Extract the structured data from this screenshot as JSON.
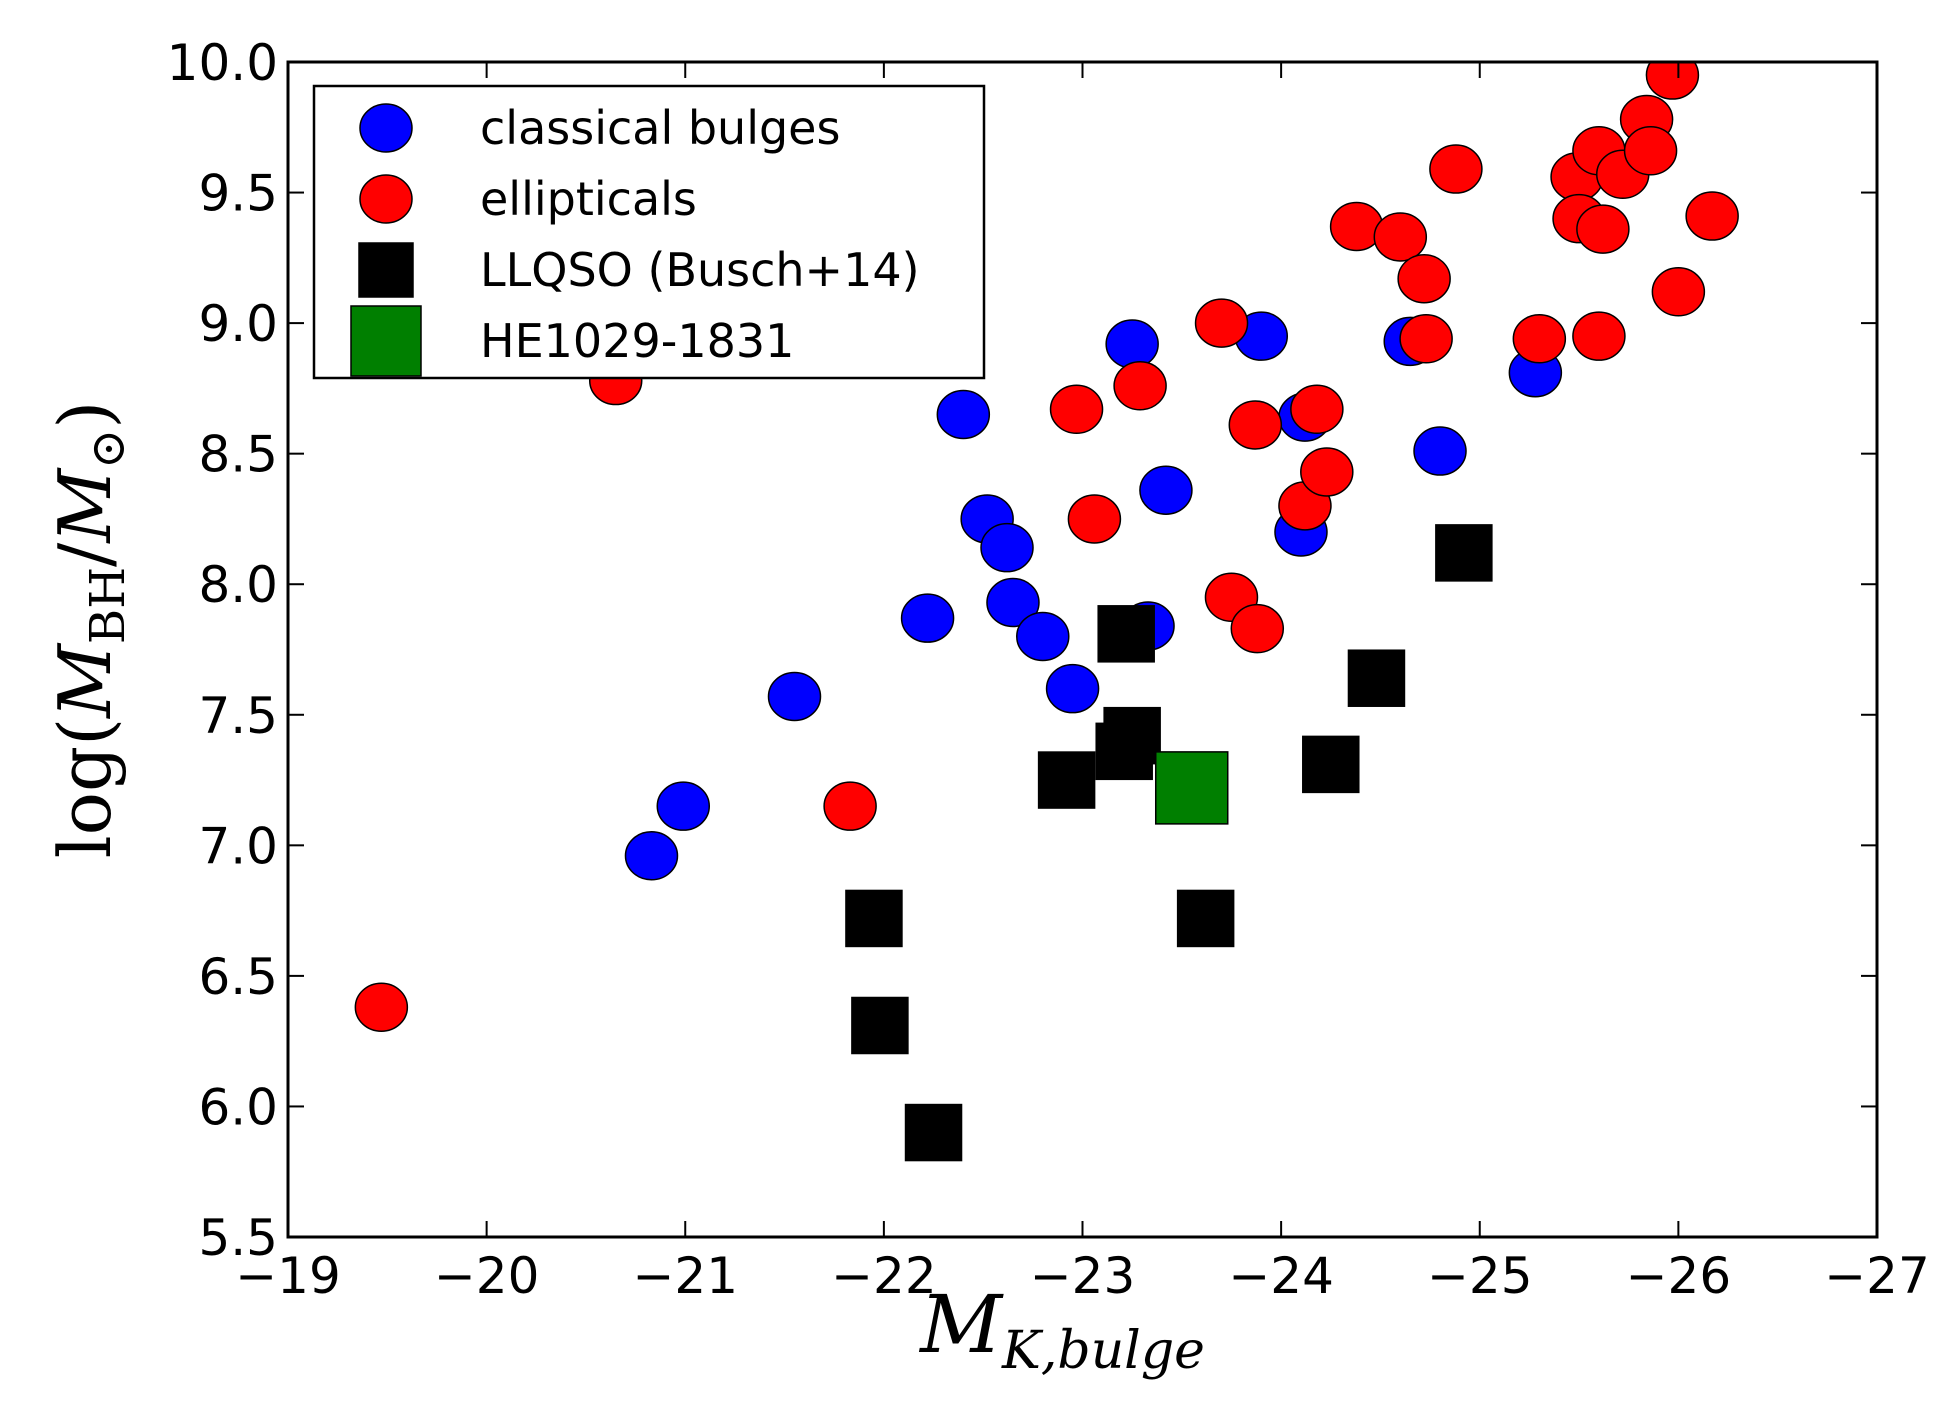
{
  "chart_data": {
    "type": "scatter",
    "xlim": [
      -19,
      -27
    ],
    "ylim": [
      5.5,
      10.0
    ],
    "x_ticks": [
      -19,
      -20,
      -21,
      -22,
      -23,
      -24,
      -25,
      -26,
      -27
    ],
    "y_ticks": [
      5.5,
      6.0,
      6.5,
      7.0,
      7.5,
      8.0,
      8.5,
      9.0,
      9.5,
      10.0
    ],
    "x_tick_labels": [
      "−19",
      "−20",
      "−21",
      "−22",
      "−23",
      "−24",
      "−25",
      "−26",
      "−27"
    ],
    "y_tick_labels": [
      "5.5",
      "6.0",
      "6.5",
      "7.0",
      "7.5",
      "8.0",
      "8.5",
      "9.0",
      "9.5",
      "10.0"
    ],
    "xlabel": {
      "main": "M",
      "sub": "K,bulge"
    },
    "ylabel": {
      "prefix": "log(",
      "main": "M",
      "sub": "BH",
      "slash": "/",
      "main2": "M",
      "sub2": "⊙",
      "suffix": ")"
    },
    "grid": false,
    "legend_position": "top-left",
    "series": [
      {
        "name": "classical bulges",
        "marker": "circle",
        "color": "#0000ff",
        "points": [
          [
            -20.83,
            6.96
          ],
          [
            -20.99,
            7.15
          ],
          [
            -21.55,
            7.57
          ],
          [
            -22.22,
            7.87
          ],
          [
            -22.4,
            8.65
          ],
          [
            -22.52,
            8.25
          ],
          [
            -22.62,
            8.14
          ],
          [
            -22.65,
            7.93
          ],
          [
            -22.8,
            7.8
          ],
          [
            -22.95,
            7.6
          ],
          [
            -23.25,
            8.92
          ],
          [
            -23.33,
            7.84
          ],
          [
            -23.42,
            8.36
          ],
          [
            -23.9,
            8.95
          ],
          [
            -24.1,
            8.2
          ],
          [
            -24.12,
            8.64
          ],
          [
            -24.65,
            8.93
          ],
          [
            -24.8,
            8.51
          ],
          [
            -25.28,
            8.81
          ]
        ]
      },
      {
        "name": "ellipticals",
        "marker": "circle",
        "color": "#ff0000",
        "points": [
          [
            -19.47,
            6.38
          ],
          [
            -20.65,
            8.78
          ],
          [
            -21.83,
            7.15
          ],
          [
            -22.97,
            8.67
          ],
          [
            -23.06,
            8.25
          ],
          [
            -23.29,
            8.76
          ],
          [
            -23.7,
            9.0
          ],
          [
            -23.75,
            7.95
          ],
          [
            -23.87,
            8.61
          ],
          [
            -23.88,
            7.83
          ],
          [
            -24.12,
            8.3
          ],
          [
            -24.18,
            8.67
          ],
          [
            -24.23,
            8.43
          ],
          [
            -24.38,
            9.37
          ],
          [
            -24.6,
            9.33
          ],
          [
            -24.72,
            9.17
          ],
          [
            -24.73,
            8.94
          ],
          [
            -24.88,
            9.59
          ],
          [
            -25.3,
            8.94
          ],
          [
            -25.49,
            9.56
          ],
          [
            -25.5,
            9.4
          ],
          [
            -25.6,
            9.66
          ],
          [
            -25.62,
            9.36
          ],
          [
            -25.6,
            8.95
          ],
          [
            -25.72,
            9.57
          ],
          [
            -25.84,
            9.78
          ],
          [
            -25.86,
            9.66
          ],
          [
            -25.97,
            9.95
          ],
          [
            -26.0,
            9.12
          ],
          [
            -26.17,
            9.41
          ]
        ]
      },
      {
        "name": "LLQSO (Busch+14)",
        "marker": "square",
        "color": "#000000",
        "points": [
          [
            -21.95,
            6.72
          ],
          [
            -21.98,
            6.31
          ],
          [
            -22.25,
            5.9
          ],
          [
            -22.92,
            7.25
          ],
          [
            -23.21,
            7.36
          ],
          [
            -23.22,
            7.81
          ],
          [
            -23.25,
            7.42
          ],
          [
            -23.62,
            6.72
          ],
          [
            -24.25,
            7.31
          ],
          [
            -24.48,
            7.64
          ],
          [
            -24.92,
            8.12
          ]
        ]
      },
      {
        "name": "HE1029-1831",
        "marker": "square",
        "color": "#007f00",
        "points": [
          [
            -23.55,
            7.22
          ]
        ]
      }
    ]
  }
}
